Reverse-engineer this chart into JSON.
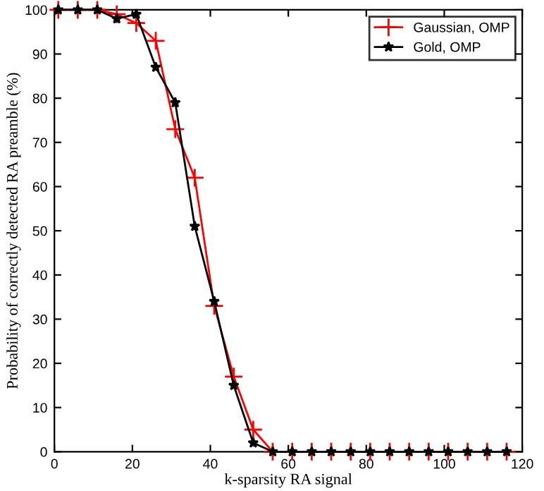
{
  "chart_data": {
    "type": "line",
    "xlabel": "k-sparsity RA signal",
    "ylabel": "Probability of correctly detected RA preamble (%)",
    "x": [
      1,
      6,
      11,
      16,
      21,
      26,
      31,
      36,
      41,
      46,
      51,
      56,
      61,
      66,
      71,
      76,
      81,
      86,
      91,
      96,
      101,
      106,
      111,
      116
    ],
    "series": [
      {
        "name": "Gaussian, OMP",
        "color": "#ff0000",
        "marker": "cross",
        "values": [
          100,
          100,
          100,
          99,
          97,
          93,
          73,
          62,
          33,
          17,
          5,
          0,
          0,
          0,
          0,
          0,
          0,
          0,
          0,
          0,
          0,
          0,
          0,
          0
        ]
      },
      {
        "name": "Gold, OMP",
        "color": "#000000",
        "marker": "star",
        "values": [
          100,
          100,
          100,
          98,
          99,
          87,
          79,
          51,
          34,
          15,
          2,
          0,
          0,
          0,
          0,
          0,
          0,
          0,
          0,
          0,
          0,
          0,
          0,
          0
        ]
      }
    ],
    "xlim": [
      0,
      120
    ],
    "xticks": [
      0,
      20,
      40,
      60,
      80,
      100,
      120
    ],
    "ylim": [
      0,
      100
    ],
    "yticks": [
      0,
      10,
      20,
      30,
      40,
      50,
      60,
      70,
      80,
      90,
      100
    ],
    "grid": false,
    "legend": "top right",
    "line_style": "solid"
  }
}
